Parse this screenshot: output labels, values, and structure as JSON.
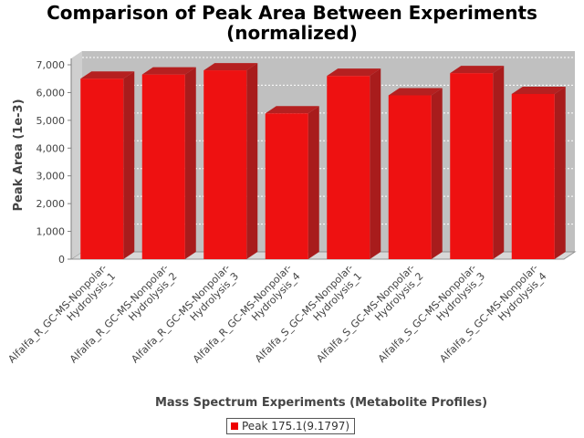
{
  "chart_data": {
    "type": "bar",
    "title": "Comparison of Peak Area Between Experiments",
    "subtitle": "(normalized)",
    "xlabel": "Mass Spectrum Experiments (Metabolite Profiles)",
    "ylabel": "Peak Area (1e-3)",
    "ylim": [
      0,
      7000
    ],
    "yticks": [
      "0",
      "1,000",
      "2,000",
      "3,000",
      "4,000",
      "5,000",
      "6,000",
      "7,000"
    ],
    "categories": [
      "Alfalfa_R_GC-MS-Nonpolar-Hydrolysis_1",
      "Alfalfa_R_GC-MS-Nonpolar-Hydrolysis_2",
      "Alfalfa_R_GC-MS-Nonpolar-Hydrolysis_3",
      "Alfalfa_R_GC-MS-Nonpolar-Hydrolysis_4",
      "Alfalfa_S_GC-MS-Nonpolar-Hydrolysis_1",
      "Alfalfa_S_GC-MS-Nonpolar-Hydrolysis_2",
      "Alfalfa_S_GC-MS-Nonpolar-Hydrolysis_3",
      "Alfalfa_S_GC-MS-Nonpolar-Hydrolysis_4"
    ],
    "category_lines": [
      [
        "Alfalfa_R_GC-MS-Nonpolar-",
        "Hydrolysis_1"
      ],
      [
        "Alfalfa_R_GC-MS-Nonpolar-",
        "Hydrolysis_2"
      ],
      [
        "Alfalfa_R_GC-MS-Nonpolar-",
        "Hydrolysis_3"
      ],
      [
        "Alfalfa_R_GC-MS-Nonpolar-",
        "Hydrolysis_4"
      ],
      [
        "Alfalfa_S_GC-MS-Nonpolar-",
        "Hydrolysis_1"
      ],
      [
        "Alfalfa_S_GC-MS-Nonpolar-",
        "Hydrolysis_2"
      ],
      [
        "Alfalfa_S_GC-MS-Nonpolar-",
        "Hydrolysis_3"
      ],
      [
        "Alfalfa_S_GC-MS-Nonpolar-",
        "Hydrolysis_4"
      ]
    ],
    "series": [
      {
        "name": "Peak 175.1(9.1797)",
        "values": [
          6500,
          6650,
          6800,
          5250,
          6600,
          5900,
          6700,
          5950
        ]
      }
    ],
    "grid": true,
    "legend_position": "bottom",
    "colors": {
      "bar_front": "#ee1111",
      "bar_top": "#b52020",
      "bar_side": "#a81c1c",
      "plot_back": "#c0c0c0",
      "plot_floor": "#d8d8d8"
    }
  }
}
